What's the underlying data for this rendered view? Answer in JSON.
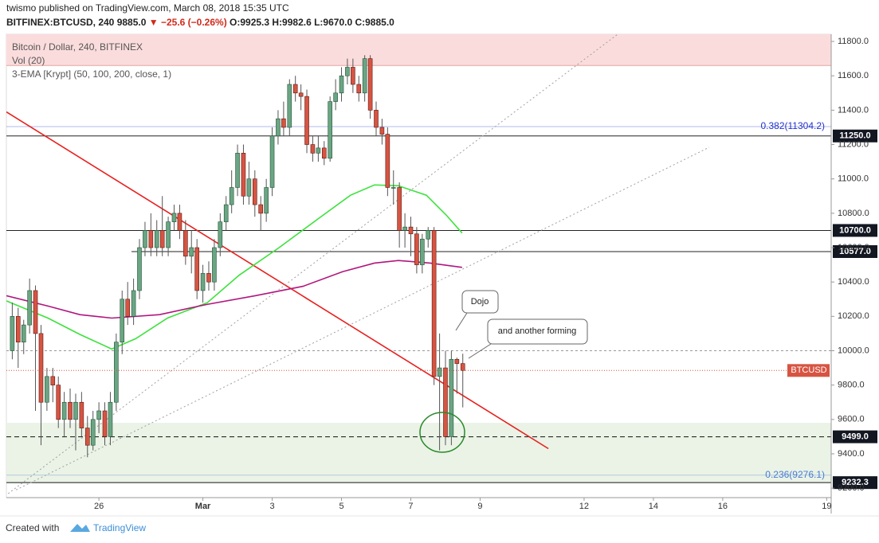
{
  "header": {
    "publisher": "twismo published on TradingView.com, March 08, 2018 15:35 UTC",
    "symbol": "BITFINEX:BTCUSD, 240",
    "price": "9885.0",
    "change": "▼ −25.6 (−0.26%)",
    "ohlc": "O:9925.3 H:9982.6 L:9670.0 C:9885.0"
  },
  "chart_data": {
    "type": "candlestick",
    "legend": [
      "Bitcoin / Dollar, 240, BITFINEX",
      "Vol (20)",
      "3-EMA [Krypt] (50, 100, 200, close, 1)"
    ],
    "x": [
      -2.5,
      -2.33,
      -2.17,
      -2,
      -1.83,
      -1.67,
      -1.5,
      -1.33,
      -1.17,
      -1,
      -0.83,
      -0.67,
      -0.5,
      -0.33,
      -0.17,
      0,
      0.17,
      0.33,
      0.5,
      0.67,
      0.83,
      1,
      1.17,
      1.33,
      1.5,
      1.67,
      1.83,
      2,
      2.17,
      2.33,
      2.5,
      2.67,
      2.83,
      3,
      3.17,
      3.33,
      3.5,
      3.67,
      3.83,
      4,
      4.17,
      4.33,
      4.5,
      4.67,
      4.83,
      5,
      5.17,
      5.33,
      5.5,
      5.67,
      5.83,
      6,
      6.17,
      6.33,
      6.5,
      6.67,
      6.83,
      7,
      7.17,
      7.33,
      7.5,
      7.67,
      7.83,
      8,
      8.17,
      8.33,
      8.5,
      8.67,
      8.83,
      9,
      9.17,
      9.33,
      9.5,
      9.67,
      9.83,
      10,
      10.17,
      10.33,
      10.5
    ],
    "open": [
      10000,
      10200,
      10050,
      10150,
      10350,
      10100,
      9700,
      9850,
      9800,
      9600,
      9700,
      9600,
      9700,
      9550,
      9450,
      9600,
      9650,
      9500,
      9700,
      10050,
      10300,
      10200,
      10350,
      10600,
      10700,
      10600,
      10700,
      10600,
      10750,
      10800,
      10700,
      10550,
      10600,
      10350,
      10450,
      10400,
      10600,
      10750,
      10850,
      10950,
      11150,
      10900,
      11000,
      10850,
      10800,
      10950,
      11250,
      11350,
      11300,
      11550,
      11500,
      11480,
      11200,
      11150,
      11180,
      11120,
      11450,
      11500,
      11600,
      11650,
      11550,
      11500,
      11700,
      11400,
      11300,
      11260,
      10950,
      10950,
      10700,
      10720,
      10680,
      10500,
      10650,
      10700,
      9850,
      9900,
      9500,
      9950,
      9925.3
    ],
    "high": [
      10280,
      10250,
      10180,
      10420,
      10380,
      10150,
      9900,
      9900,
      9850,
      9760,
      9780,
      9750,
      9760,
      9620,
      9650,
      9700,
      9700,
      9760,
      10100,
      10350,
      10400,
      10420,
      10650,
      10750,
      10800,
      10760,
      10900,
      10780,
      10850,
      10850,
      10760,
      10700,
      10650,
      10500,
      10520,
      10650,
      10800,
      10900,
      11050,
      11200,
      11200,
      11100,
      11050,
      10900,
      11000,
      11300,
      11400,
      11450,
      11580,
      11600,
      11550,
      11520,
      11250,
      11250,
      11220,
      11480,
      11580,
      11650,
      11700,
      11700,
      11600,
      11720,
      11720,
      11450,
      11350,
      11300,
      11050,
      10980,
      10800,
      10780,
      10720,
      10680,
      10720,
      10720,
      10100,
      10000,
      10000,
      9960,
      9982.6
    ],
    "low": [
      9950,
      9900,
      9980,
      10100,
      9650,
      9450,
      9650,
      9700,
      9550,
      9500,
      9550,
      9420,
      9500,
      9380,
      9420,
      9520,
      9450,
      9450,
      9650,
      9980,
      10150,
      10150,
      10300,
      10550,
      10550,
      10550,
      10550,
      10550,
      10700,
      10650,
      10500,
      10450,
      10300,
      10280,
      10350,
      10350,
      10550,
      10700,
      10800,
      10900,
      10850,
      10850,
      10780,
      10700,
      10750,
      10900,
      11200,
      11250,
      11250,
      11450,
      11400,
      11150,
      11100,
      11100,
      11080,
      11100,
      11400,
      11450,
      11550,
      11500,
      11450,
      11450,
      11350,
      11250,
      11200,
      10900,
      10850,
      10600,
      10600,
      10550,
      10450,
      10450,
      10600,
      9800,
      9420,
      9450,
      9450,
      9750,
      9670
    ],
    "close": [
      10200,
      10050,
      10150,
      10350,
      10100,
      9700,
      9850,
      9800,
      9600,
      9700,
      9600,
      9700,
      9550,
      9450,
      9600,
      9650,
      9500,
      9700,
      10050,
      10300,
      10200,
      10350,
      10600,
      10700,
      10600,
      10700,
      10600,
      10750,
      10800,
      10700,
      10550,
      10600,
      10350,
      10450,
      10400,
      10600,
      10750,
      10850,
      10950,
      11150,
      10900,
      11000,
      10850,
      10800,
      10950,
      11250,
      11350,
      11300,
      11550,
      11500,
      11480,
      11200,
      11150,
      11180,
      11120,
      11450,
      11500,
      11600,
      11650,
      11550,
      11500,
      11700,
      11400,
      11300,
      11260,
      10950,
      10950,
      10700,
      10720,
      10680,
      10500,
      10650,
      10700,
      9850,
      9900,
      9500,
      9950,
      9925.3,
      9885
    ],
    "up_color": "#6ba583",
    "down_color": "#d75442",
    "symbol_label": "BTCUSD",
    "lines": [
      {
        "color": "#3de23d",
        "x": [
          -2.67,
          -1.47,
          -0.55,
          0.37,
          1.06,
          1.98,
          3.13,
          4.05,
          5.2,
          6.34,
          7.26,
          7.95,
          8.64,
          9.45,
          10.02,
          10.48
        ],
        "values": [
          10290,
          10190,
          10095,
          10010,
          10070,
          10190,
          10280,
          10440,
          10600,
          10770,
          10905,
          10965,
          10960,
          10905,
          10790,
          10685
        ]
      },
      {
        "color": "#b0177e",
        "x": [
          -2.67,
          -1.47,
          -0.55,
          0.37,
          1.75,
          3.13,
          4.51,
          5.89,
          7.03,
          7.95,
          8.64,
          9.56,
          10.48
        ],
        "values": [
          10320,
          10260,
          10210,
          10190,
          10210,
          10270,
          10320,
          10375,
          10460,
          10510,
          10525,
          10510,
          10485
        ]
      }
    ],
    "xlim": [
      -2.67,
      21.13
    ],
    "xticks": [
      {
        "value": 0,
        "label": "26"
      },
      {
        "value": 3,
        "label": "Mar"
      },
      {
        "value": 5,
        "label": "3"
      },
      {
        "value": 7,
        "label": "5"
      },
      {
        "value": 9,
        "label": "7"
      },
      {
        "value": 11,
        "label": "9"
      },
      {
        "value": 14,
        "label": "12"
      },
      {
        "value": 16,
        "label": "14"
      },
      {
        "value": 18,
        "label": "16"
      },
      {
        "value": 21,
        "label": "19"
      }
    ],
    "ylim": [
      9145,
      11842
    ],
    "yticks": [
      {
        "value": 9200,
        "label": "9200.0"
      },
      {
        "value": 9400,
        "label": "9400.0"
      },
      {
        "value": 9600,
        "label": "9600.0"
      },
      {
        "value": 9800,
        "label": "9800.0"
      },
      {
        "value": 10000,
        "label": "10000.0"
      },
      {
        "value": 10200,
        "label": "10200.0"
      },
      {
        "value": 10400,
        "label": "10400.0"
      },
      {
        "value": 10600,
        "label": "10600.0"
      },
      {
        "value": 10800,
        "label": "10800.0"
      },
      {
        "value": 11000,
        "label": "11000.0"
      },
      {
        "value": 11200,
        "label": "11200.0"
      },
      {
        "value": 11400,
        "label": "11400.0"
      },
      {
        "value": 11600,
        "label": "11600.0"
      },
      {
        "value": 11800,
        "label": "11800.0"
      }
    ],
    "zones": [
      {
        "from": 11660,
        "to": 11842,
        "color": "#fbdcdc",
        "edge": "#e7a4a4"
      },
      {
        "from": 9232.3,
        "to": 9580,
        "color": "#eaf3e6",
        "edge": "#9cc99a"
      }
    ],
    "levels": [
      {
        "value": 11250,
        "label": "11250.0",
        "style": "solid"
      },
      {
        "value": 10700,
        "label": "10700.0",
        "style": "solid"
      },
      {
        "value": 10577,
        "label": "10577.0",
        "style": "solid",
        "start": 0.94
      },
      {
        "value": 9499,
        "label": "9499.0",
        "style": "dashed"
      },
      {
        "value": 9232.3,
        "label": "9232.3",
        "style": "solid"
      },
      {
        "value": 10000,
        "style": "dashed-gray"
      }
    ],
    "fib": [
      {
        "value": 11304.2,
        "label": "0.382(11304.2)",
        "color": "#2233cc"
      },
      {
        "value": 9276.1,
        "label": "0.236(9276.1)",
        "color": "#4a7bd4"
      }
    ],
    "trendlines": [
      {
        "color": "#e8201e",
        "style": "solid",
        "points": [
          [
            -2.67,
            11390
          ],
          [
            12.97,
            9430
          ]
        ]
      },
      {
        "color": "#a0a0a0",
        "style": "dotted",
        "points": [
          [
            -2.62,
            9168
          ],
          [
            14.97,
            11842
          ]
        ]
      },
      {
        "color": "#a0a0a0",
        "style": "dotted",
        "points": [
          [
            -2.39,
            9190
          ],
          [
            17.61,
            11184
          ]
        ]
      }
    ],
    "annotations": [
      "Dojo",
      "and another forming"
    ]
  },
  "footer": {
    "created": "Created with",
    "brand": "TradingView"
  }
}
